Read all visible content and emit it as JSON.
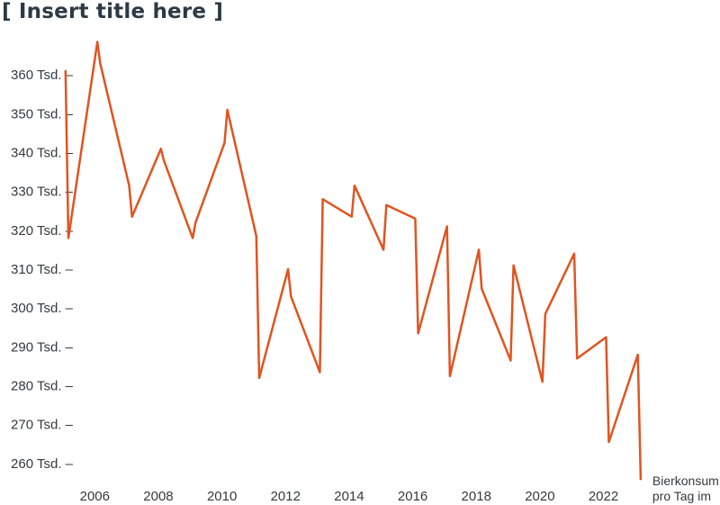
{
  "chart_data": {
    "type": "line",
    "title": "[ Insert title here ]",
    "xlabel": "",
    "ylabel": "",
    "x_ticks": [
      "2006",
      "2008",
      "2010",
      "2012",
      "2014",
      "2016",
      "2018",
      "2020",
      "2022"
    ],
    "y_ticks": [
      "260 Tsd. –",
      "270 Tsd. –",
      "280 Tsd. –",
      "290 Tsd. –",
      "300 Tsd. –",
      "310 Tsd. –",
      "320 Tsd. –",
      "330 Tsd. –",
      "340 Tsd. –",
      "350 Tsd. –",
      "360 Tsd. –"
    ],
    "y_tick_values": [
      260000,
      270000,
      280000,
      290000,
      300000,
      310000,
      320000,
      330000,
      340000,
      350000,
      360000
    ],
    "x_tick_values": [
      2006,
      2008,
      2010,
      2012,
      2014,
      2016,
      2018,
      2020,
      2022
    ],
    "xlim": [
      2005.0,
      2023.4
    ],
    "ylim": [
      256500,
      370000
    ],
    "grid": false,
    "color": "#e05420",
    "series": [
      {
        "name": "Bierkonsum pro Tag im",
        "x": [
          2005.08,
          2005.17,
          2006.08,
          2006.17,
          2007.08,
          2007.17,
          2008.08,
          2008.17,
          2009.08,
          2009.17,
          2010.08,
          2010.17,
          2011.08,
          2011.17,
          2012.08,
          2012.17,
          2013.08,
          2013.17,
          2014.08,
          2014.17,
          2015.08,
          2015.17,
          2016.08,
          2016.17,
          2017.08,
          2017.17,
          2018.08,
          2018.17,
          2019.08,
          2019.17,
          2020.08,
          2020.17,
          2021.08,
          2021.17,
          2022.08,
          2022.17,
          2023.08,
          2023.17
        ],
        "values": [
          361000,
          318000,
          368500,
          363000,
          331500,
          323500,
          341000,
          338000,
          318000,
          322000,
          342500,
          351000,
          318500,
          282000,
          310000,
          303000,
          283500,
          328000,
          323500,
          331500,
          315000,
          326500,
          323000,
          293500,
          321000,
          282500,
          315000,
          305000,
          286500,
          311000,
          281000,
          298500,
          314000,
          287000,
          292500,
          265500,
          288000,
          256000
        ]
      }
    ]
  }
}
